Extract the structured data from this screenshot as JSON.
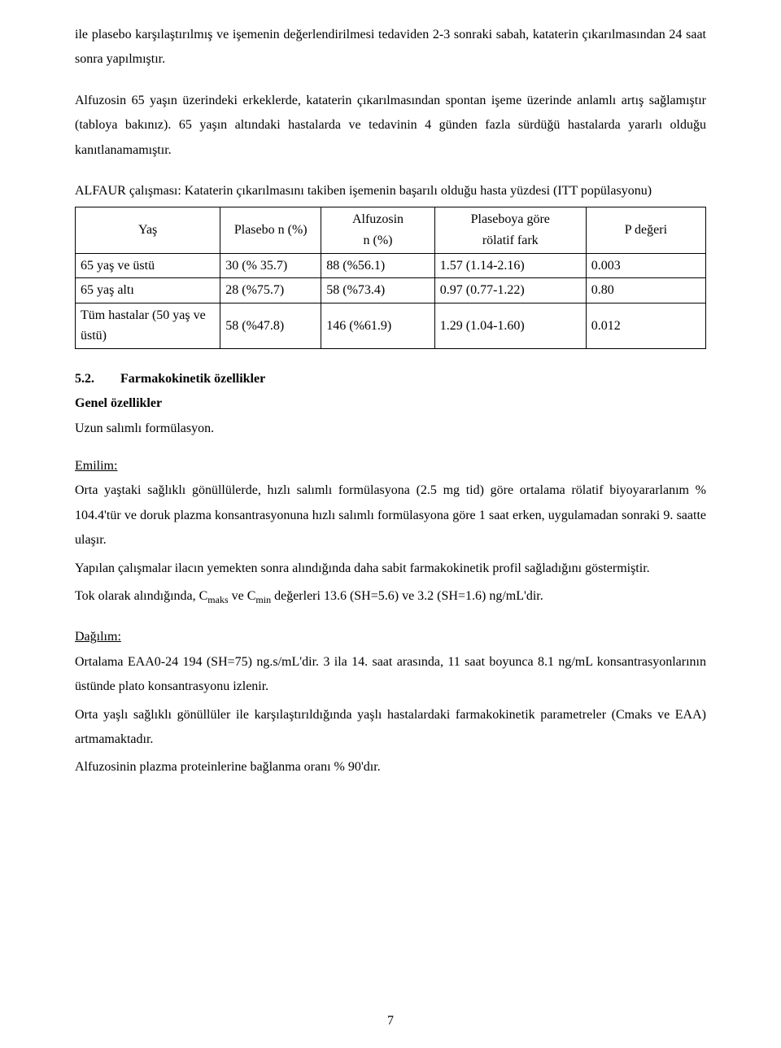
{
  "intro_para": "ile plasebo karşılaştırılmış ve işemenin değerlendirilmesi tedaviden 2-3 sonraki sabah, kataterin çıkarılmasından 24 saat sonra yapılmıştır.",
  "intro_para2": "Alfuzosin 65 yaşın üzerindeki erkeklerde, kataterin çıkarılmasından spontan işeme üzerinde anlamlı artış sağlamıştır (tabloya bakınız). 65 yaşın altındaki hastalarda ve tedavinin 4 günden fazla sürdüğü hastalarda yararlı olduğu kanıtlanamamıştır.",
  "table_caption": "ALFAUR çalışması: Kataterin çıkarılmasını takiben işemenin başarılı olduğu hasta yüzdesi (ITT popülasyonu)",
  "table": {
    "headers": {
      "age": "Yaş",
      "plasebo": "Plasebo n (%)",
      "alfuzosin_l1": "Alfuzosin",
      "alfuzosin_l2": "n (%)",
      "rel_l1": "Plaseboya göre",
      "rel_l2": "rölatif fark",
      "p": "P değeri"
    },
    "rows": [
      {
        "age": "65 yaş ve üstü",
        "plasebo": "30 (% 35.7)",
        "alf": "88 (%56.1)",
        "rel": "1.57 (1.14-2.16)",
        "p": "0.003"
      },
      {
        "age": "65 yaş altı",
        "plasebo": "28 (%75.7)",
        "alf": "58 (%73.4)",
        "rel": "0.97 (0.77-1.22)",
        "p": "0.80"
      },
      {
        "age": "Tüm hastalar (50 yaş ve üstü)",
        "plasebo": "58 (%47.8)",
        "alf": "146 (%61.9)",
        "rel": "1.29 (1.04-1.60)",
        "p": "0.012"
      }
    ]
  },
  "section": {
    "num": "5.2.",
    "title": "Farmakokinetik özellikler",
    "sub1": "Genel özellikler",
    "sub1_text": "Uzun salımlı formülasyon."
  },
  "emilim": {
    "heading": "Emilim:",
    "p1": "Orta yaştaki sağlıklı gönüllülerde, hızlı salımlı formülasyona (2.5 mg tid) göre ortalama rölatif biyoyararlanım % 104.4'tür ve doruk plazma konsantrasyonuna hızlı salımlı formülasyona göre 1 saat erken, uygulamadan sonraki 9. saatte ulaşır.",
    "p2": "Yapılan çalışmalar ilacın yemekten sonra alındığında daha sabit farmakokinetik profil sağladığını göstermiştir.",
    "p3_pre": "Tok olarak alındığında, C",
    "p3_sub1": "maks",
    "p3_mid": " ve C",
    "p3_sub2": "min",
    "p3_post": " değerleri 13.6 (SH=5.6) ve 3.2 (SH=1.6) ng/mL'dir."
  },
  "dagilim": {
    "heading": "Dağılım:",
    "p1": "Ortalama EAA0-24 194 (SH=75) ng.s/mL'dir. 3 ila 14. saat arasında, 11 saat boyunca 8.1 ng/mL konsantrasyonlarının üstünde plato konsantrasyonu izlenir.",
    "p2": "Orta yaşlı sağlıklı gönüllüler ile karşılaştırıldığında yaşlı hastalardaki farmakokinetik parametreler (Cmaks ve EAA) artmamaktadır.",
    "p3": "Alfuzosinin plazma proteinlerine bağlanma oranı % 90'dır."
  },
  "page_number": "7"
}
